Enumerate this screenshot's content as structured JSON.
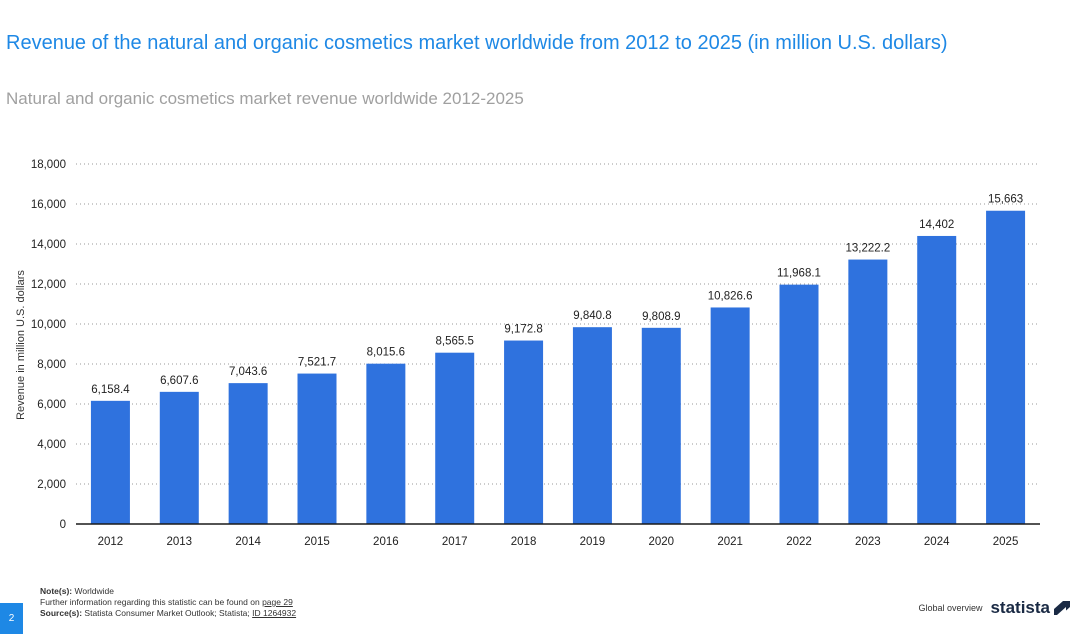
{
  "header": {
    "title": "Revenue of the natural and organic cosmetics market worldwide from 2012 to 2025 (in million U.S. dollars)",
    "subtitle": "Natural and organic cosmetics market revenue worldwide 2012-2025"
  },
  "chart_data": {
    "type": "bar",
    "categories": [
      "2012",
      "2013",
      "2014",
      "2015",
      "2016",
      "2017",
      "2018",
      "2019",
      "2020",
      "2021",
      "2022",
      "2023",
      "2024",
      "2025"
    ],
    "values": [
      6158.4,
      6607.6,
      7043.6,
      7521.7,
      8015.6,
      8565.5,
      9172.8,
      9840.8,
      9808.9,
      10826.6,
      11968.1,
      13222.2,
      14402,
      15663
    ],
    "value_labels": [
      "6,158.4",
      "6,607.6",
      "7,043.6",
      "7,521.7",
      "8,015.6",
      "8,565.5",
      "9,172.8",
      "9,840.8",
      "9,808.9",
      "10,826.6",
      "11,968.1",
      "13,222.2",
      "14,402",
      "15,663"
    ],
    "ylabel": "Revenue in million U.S. dollars",
    "ylim": [
      0,
      18000
    ],
    "yticks": [
      0,
      2000,
      4000,
      6000,
      8000,
      10000,
      12000,
      14000,
      16000,
      18000
    ],
    "ytick_labels": [
      "0",
      "2,000",
      "4,000",
      "6,000",
      "8,000",
      "10,000",
      "12,000",
      "14,000",
      "16,000",
      "18,000"
    ],
    "grid": true,
    "bar_color": "#2f72de"
  },
  "footer": {
    "notes_label": "Note(s):",
    "notes_text": "Worldwide",
    "further_info": "Further information regarding this statistic can be found on",
    "page_link": "page 29",
    "sources_label": "Source(s):",
    "sources_text": "Statista Consumer Market Outlook; Statista;",
    "id_link": "ID 1264932",
    "page_number": "2",
    "section": "Global overview",
    "brand": "statista"
  }
}
